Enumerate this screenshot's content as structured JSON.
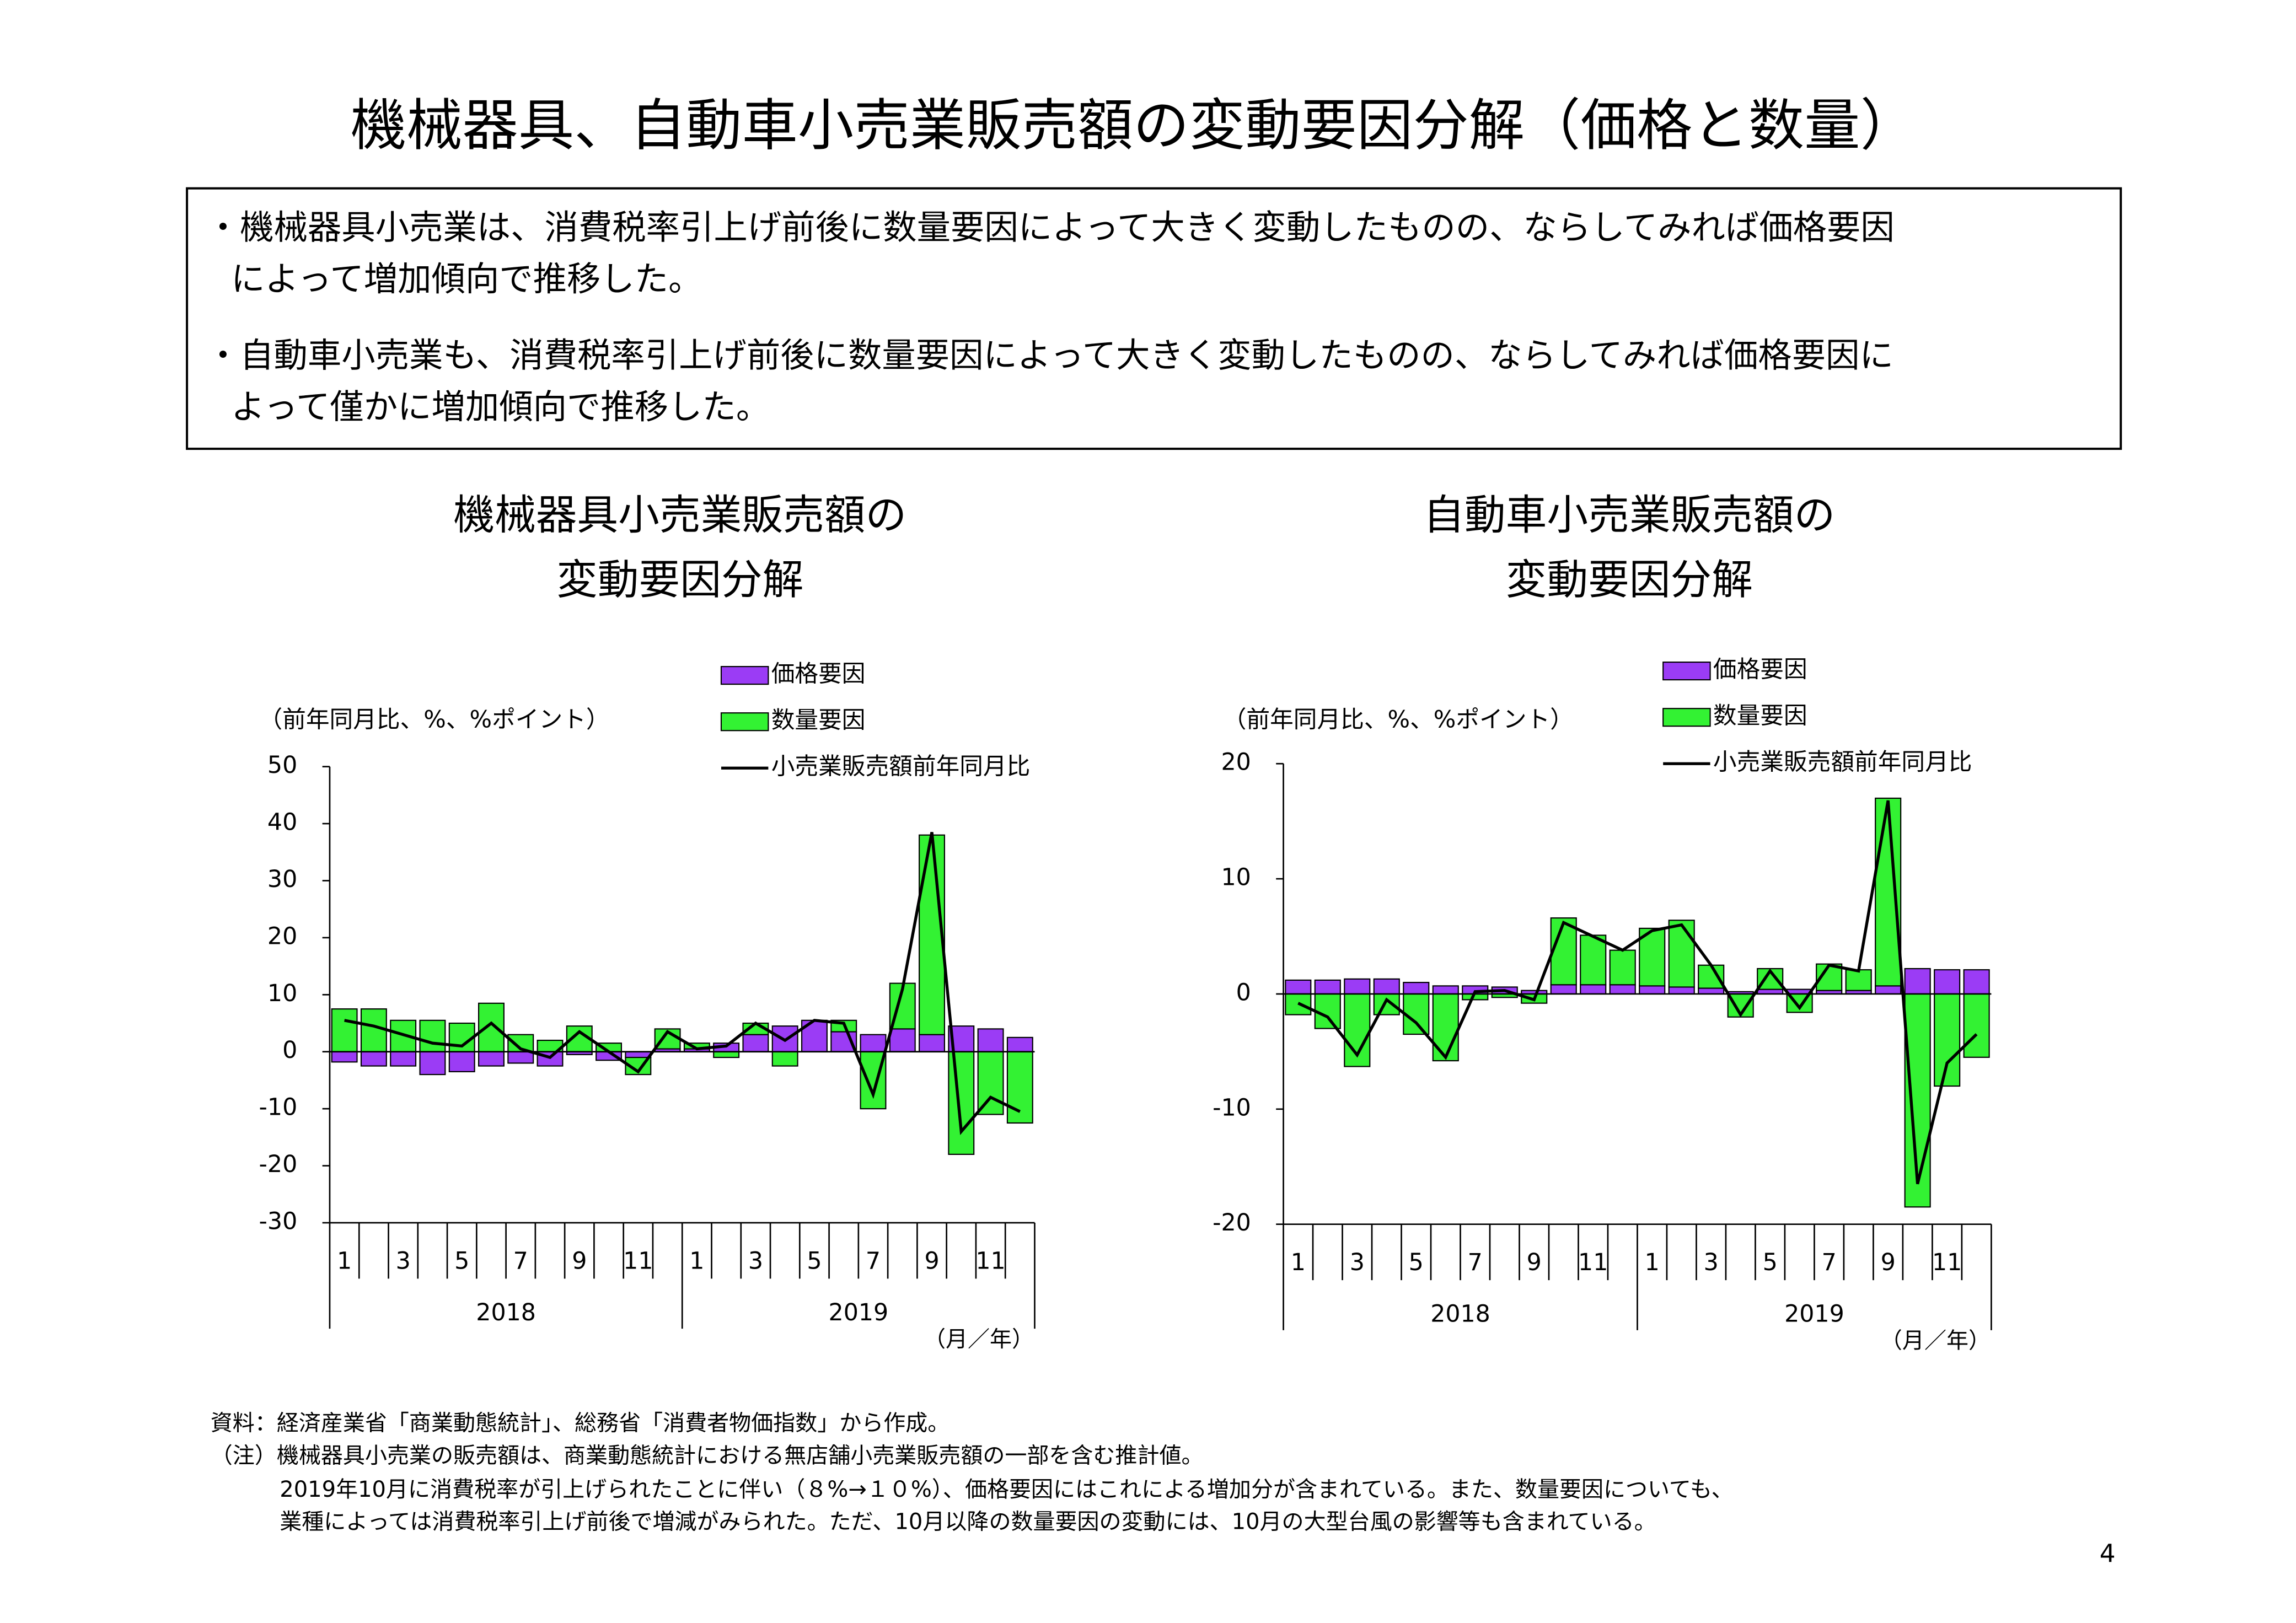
{
  "title": "機械器具、自動車小売業販売額の変動要因分解（価格と数量）",
  "bullets": [
    [
      "・機械器具小売業は、消費税率引上げ前後に数量要因によって大きく変動したものの、ならしてみれば価格要因",
      "によって増加傾向で推移した。"
    ],
    [
      "・自動車小売業も、消費税率引上げ前後に数量要因によって大きく変動したものの、ならしてみれば価格要因に",
      "よって僅かに増加傾向で推移した。"
    ]
  ],
  "chart_data": [
    {
      "type": "bar",
      "stacked": true,
      "title": [
        "機械器具小売業販売額の",
        "変動要因分解"
      ],
      "y_label": "（前年同月比、%、%ポイント）",
      "x_unit_label": "（月／年）",
      "categories": [
        "1",
        null,
        "3",
        null,
        "5",
        null,
        "7",
        null,
        "9",
        null,
        "11",
        null,
        "1",
        null,
        "3",
        null,
        "5",
        null,
        "7",
        null,
        "9",
        null,
        "11",
        null
      ],
      "years": [
        "2018",
        "2019"
      ],
      "ylim": [
        -30,
        50
      ],
      "yticks": [
        -30,
        -20,
        -10,
        0,
        10,
        20,
        30,
        40,
        50
      ],
      "series": [
        {
          "name": "価格要因",
          "color": "#9b3cf5",
          "values": [
            -1.8,
            -2.5,
            -2.5,
            -4,
            -3.5,
            -2.5,
            -2,
            -2.5,
            -0.5,
            -1.5,
            -1,
            0.5,
            0.5,
            1.5,
            3,
            4.5,
            5.5,
            3.5,
            3,
            4,
            3,
            4.5,
            4,
            2.5
          ]
        },
        {
          "name": "数量要因",
          "color": "#33f233",
          "values": [
            7.5,
            7.5,
            5.5,
            5.5,
            5,
            8.5,
            3,
            2,
            4.5,
            1.5,
            -3,
            3.5,
            1,
            -1,
            2,
            -2.5,
            0,
            2,
            -10,
            8,
            35,
            -18,
            -11,
            -12.5
          ]
        },
        {
          "name": "小売業販売額前年同月比",
          "color": "#000000",
          "type": "line",
          "values": [
            5.5,
            4.5,
            3,
            1.5,
            1,
            5,
            0.5,
            -1,
            3.5,
            0,
            -3.5,
            3.5,
            0.5,
            1,
            5,
            2,
            5.5,
            5,
            -7.5,
            11,
            38.5,
            -14,
            -8,
            -10.5
          ]
        }
      ]
    },
    {
      "type": "bar",
      "stacked": true,
      "title": [
        "自動車小売業販売額の",
        "変動要因分解"
      ],
      "y_label": "（前年同月比、%、%ポイント）",
      "x_unit_label": "（月／年）",
      "categories": [
        "1",
        null,
        "3",
        null,
        "5",
        null,
        "7",
        null,
        "9",
        null,
        "11",
        null,
        "1",
        null,
        "3",
        null,
        "5",
        null,
        "7",
        null,
        "9",
        null,
        "11",
        null
      ],
      "years": [
        "2018",
        "2019"
      ],
      "ylim": [
        -20,
        20
      ],
      "yticks": [
        -20,
        -10,
        0,
        10,
        20
      ],
      "series": [
        {
          "name": "価格要因",
          "color": "#9b3cf5",
          "values": [
            1.2,
            1.2,
            1.3,
            1.3,
            1,
            0.7,
            0.7,
            0.6,
            0.3,
            0.8,
            0.8,
            0.8,
            0.7,
            0.6,
            0.5,
            0.2,
            0.4,
            0.4,
            0.3,
            0.3,
            0.7,
            2.2,
            2.1,
            2.1
          ]
        },
        {
          "name": "数量要因",
          "color": "#33f233",
          "values": [
            -1.8,
            -3,
            -6.3,
            -1.8,
            -3.5,
            -5.8,
            -0.5,
            -0.3,
            -0.8,
            5.8,
            4.3,
            3,
            5,
            5.8,
            2,
            -2,
            1.8,
            -1.6,
            2.3,
            1.8,
            16.3,
            -18.5,
            -8,
            -5.5
          ]
        },
        {
          "name": "小売業販売額前年同月比",
          "color": "#000000",
          "type": "line",
          "values": [
            -0.8,
            -2,
            -5.3,
            -0.5,
            -2.5,
            -5.5,
            0.2,
            0.3,
            -0.5,
            6.2,
            5,
            3.8,
            5.5,
            6,
            2.5,
            -1.8,
            2,
            -1.2,
            2.5,
            2,
            16.8,
            -16.5,
            -6,
            -3.5
          ]
        }
      ]
    }
  ],
  "notes": [
    "資料：経済産業省「商業動態統計」、総務省「消費者物価指数」から作成。",
    "（注）機械器具小売業の販売額は、商業動態統計における無店舗小売業販売額の一部を含む推計値。",
    "2019年10月に消費税率が引上げられたことに伴い（８%→１０%）、価格要因にはこれによる増加分が含まれている。また、数量要因についても、",
    "業種によっては消費税率引上げ前後で増減がみられた。ただ、10月以降の数量要因の変動には、10月の大型台風の影響等も含まれている。"
  ],
  "page_number": "4"
}
